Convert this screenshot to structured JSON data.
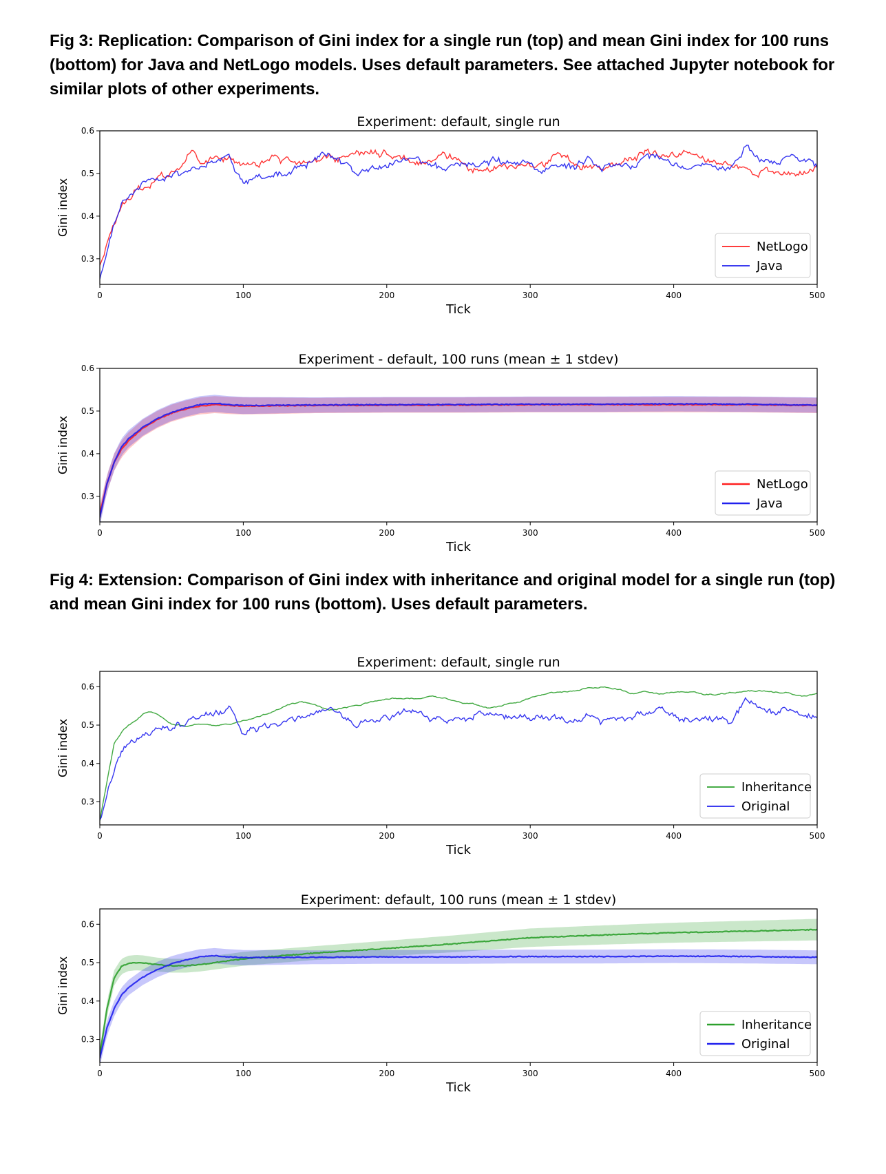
{
  "figures": {
    "fig3_caption": "Fig 3: Replication: Comparison of Gini index for a single run (top) and mean Gini index for 100 runs (bottom) for Java and NetLogo models.  Uses default parameters.  See attached Jupyter notebook for similar plots of other experiments.",
    "fig4_caption": "Fig 4: Extension: Comparison of Gini index with inheritance and original model for a single run (top) and mean Gini index for 100 runs (bottom).  Uses default parameters."
  },
  "chart_data": [
    {
      "type": "line",
      "title": "Experiment: default, single run",
      "xlabel": "Tick",
      "ylabel": "Gini index",
      "xlim": [
        0,
        500
      ],
      "ylim": [
        0.24,
        0.6
      ],
      "xticks": [
        0,
        100,
        200,
        300,
        400,
        500
      ],
      "yticks": [
        0.3,
        0.4,
        0.5,
        0.6
      ],
      "grid": false,
      "legend": "lower right",
      "series": [
        {
          "name": "NetLogo",
          "color": "#ff2020",
          "style": "noisy",
          "x": [
            0,
            5,
            10,
            15,
            20,
            30,
            40,
            50,
            60,
            65,
            70,
            80,
            90,
            100,
            110,
            120,
            130,
            140,
            150,
            160,
            170,
            180,
            190,
            200,
            210,
            220,
            230,
            240,
            250,
            260,
            270,
            280,
            290,
            300,
            310,
            320,
            330,
            340,
            350,
            360,
            370,
            380,
            390,
            400,
            410,
            420,
            430,
            440,
            450,
            460,
            470,
            480,
            490,
            500
          ],
          "y": [
            0.28,
            0.33,
            0.38,
            0.42,
            0.44,
            0.47,
            0.49,
            0.5,
            0.53,
            0.555,
            0.53,
            0.54,
            0.53,
            0.52,
            0.52,
            0.535,
            0.53,
            0.52,
            0.53,
            0.535,
            0.54,
            0.545,
            0.55,
            0.545,
            0.535,
            0.525,
            0.535,
            0.545,
            0.53,
            0.5,
            0.51,
            0.52,
            0.515,
            0.52,
            0.525,
            0.55,
            0.525,
            0.52,
            0.51,
            0.52,
            0.535,
            0.55,
            0.545,
            0.545,
            0.55,
            0.535,
            0.525,
            0.52,
            0.51,
            0.5,
            0.505,
            0.495,
            0.5,
            0.515
          ]
        },
        {
          "name": "Java",
          "color": "#2020ee",
          "style": "noisy",
          "x": [
            0,
            5,
            10,
            15,
            20,
            30,
            40,
            50,
            60,
            65,
            70,
            80,
            90,
            100,
            110,
            120,
            130,
            140,
            150,
            160,
            170,
            180,
            190,
            200,
            210,
            220,
            230,
            240,
            250,
            260,
            270,
            280,
            290,
            300,
            310,
            320,
            330,
            340,
            350,
            360,
            370,
            380,
            390,
            400,
            410,
            420,
            430,
            440,
            450,
            460,
            470,
            480,
            490,
            500
          ],
          "y": [
            0.25,
            0.31,
            0.38,
            0.43,
            0.45,
            0.47,
            0.49,
            0.495,
            0.505,
            0.51,
            0.52,
            0.53,
            0.54,
            0.48,
            0.49,
            0.5,
            0.505,
            0.52,
            0.53,
            0.545,
            0.52,
            0.5,
            0.515,
            0.52,
            0.53,
            0.54,
            0.52,
            0.515,
            0.52,
            0.52,
            0.53,
            0.53,
            0.525,
            0.52,
            0.515,
            0.52,
            0.515,
            0.53,
            0.51,
            0.52,
            0.515,
            0.53,
            0.54,
            0.52,
            0.51,
            0.52,
            0.515,
            0.51,
            0.56,
            0.54,
            0.525,
            0.535,
            0.53,
            0.52
          ]
        }
      ]
    },
    {
      "type": "line",
      "title": "Experiment - default, 100 runs (mean ± 1 stdev)",
      "xlabel": "Tick",
      "ylabel": "Gini index",
      "xlim": [
        0,
        500
      ],
      "ylim": [
        0.24,
        0.6
      ],
      "xticks": [
        0,
        100,
        200,
        300,
        400,
        500
      ],
      "yticks": [
        0.3,
        0.4,
        0.5,
        0.6
      ],
      "grid": false,
      "legend": "lower right",
      "band": "mean ± 1 stdev",
      "series": [
        {
          "name": "NetLogo",
          "color": "#ff2020",
          "style": "smooth",
          "x": [
            0,
            5,
            10,
            15,
            20,
            30,
            40,
            50,
            60,
            70,
            80,
            90,
            100,
            150,
            200,
            250,
            300,
            350,
            400,
            450,
            500
          ],
          "y": [
            0.26,
            0.33,
            0.38,
            0.41,
            0.43,
            0.46,
            0.48,
            0.495,
            0.505,
            0.512,
            0.515,
            0.513,
            0.512,
            0.513,
            0.514,
            0.514,
            0.515,
            0.515,
            0.515,
            0.515,
            0.513
          ],
          "sd": [
            0.02,
            0.02,
            0.02,
            0.02,
            0.02,
            0.02,
            0.02,
            0.02,
            0.02,
            0.02,
            0.02,
            0.02,
            0.02,
            0.018,
            0.018,
            0.018,
            0.018,
            0.018,
            0.018,
            0.018,
            0.018
          ]
        },
        {
          "name": "Java",
          "color": "#2020ee",
          "style": "smooth",
          "x": [
            0,
            5,
            10,
            15,
            20,
            30,
            40,
            50,
            60,
            70,
            80,
            90,
            100,
            150,
            200,
            250,
            300,
            350,
            400,
            450,
            500
          ],
          "y": [
            0.25,
            0.33,
            0.38,
            0.415,
            0.435,
            0.462,
            0.482,
            0.497,
            0.507,
            0.515,
            0.518,
            0.515,
            0.513,
            0.514,
            0.515,
            0.515,
            0.516,
            0.516,
            0.517,
            0.516,
            0.514
          ],
          "sd": [
            0.02,
            0.02,
            0.02,
            0.02,
            0.02,
            0.02,
            0.02,
            0.02,
            0.02,
            0.02,
            0.02,
            0.02,
            0.02,
            0.018,
            0.018,
            0.018,
            0.018,
            0.018,
            0.018,
            0.018,
            0.018
          ]
        }
      ]
    },
    {
      "type": "line",
      "title": "Experiment: default, single run",
      "xlabel": "Tick",
      "ylabel": "Gini index",
      "xlim": [
        0,
        500
      ],
      "ylim": [
        0.24,
        0.64
      ],
      "xticks": [
        0,
        100,
        200,
        300,
        400,
        500
      ],
      "yticks": [
        0.3,
        0.4,
        0.5,
        0.6
      ],
      "grid": false,
      "legend": "lower right",
      "series": [
        {
          "name": "Inheritance",
          "color": "#2ca02c",
          "style": "wavy",
          "x": [
            0,
            5,
            10,
            15,
            20,
            25,
            30,
            35,
            40,
            45,
            50,
            60,
            70,
            80,
            90,
            100,
            110,
            120,
            130,
            140,
            150,
            160,
            170,
            180,
            190,
            200,
            210,
            220,
            230,
            240,
            250,
            260,
            270,
            280,
            290,
            300,
            310,
            320,
            330,
            340,
            350,
            360,
            370,
            380,
            390,
            400,
            410,
            420,
            430,
            440,
            450,
            460,
            470,
            480,
            490,
            500
          ],
          "y": [
            0.25,
            0.35,
            0.45,
            0.48,
            0.5,
            0.51,
            0.53,
            0.535,
            0.53,
            0.52,
            0.505,
            0.5,
            0.505,
            0.5,
            0.5,
            0.51,
            0.52,
            0.535,
            0.55,
            0.56,
            0.555,
            0.54,
            0.545,
            0.55,
            0.56,
            0.57,
            0.57,
            0.57,
            0.575,
            0.57,
            0.56,
            0.555,
            0.545,
            0.55,
            0.56,
            0.57,
            0.58,
            0.585,
            0.59,
            0.595,
            0.6,
            0.595,
            0.585,
            0.585,
            0.58,
            0.585,
            0.585,
            0.58,
            0.58,
            0.585,
            0.59,
            0.59,
            0.585,
            0.585,
            0.575,
            0.58
          ]
        },
        {
          "name": "Original",
          "color": "#2020ee",
          "style": "noisy",
          "x": [
            0,
            5,
            10,
            15,
            20,
            30,
            40,
            50,
            60,
            65,
            70,
            80,
            90,
            100,
            110,
            120,
            130,
            140,
            150,
            160,
            170,
            180,
            190,
            200,
            210,
            220,
            230,
            240,
            250,
            260,
            270,
            280,
            290,
            300,
            310,
            320,
            330,
            340,
            350,
            360,
            370,
            380,
            390,
            400,
            410,
            420,
            430,
            440,
            450,
            460,
            470,
            480,
            490,
            500
          ],
          "y": [
            0.25,
            0.31,
            0.38,
            0.43,
            0.45,
            0.47,
            0.49,
            0.495,
            0.505,
            0.51,
            0.52,
            0.53,
            0.54,
            0.48,
            0.49,
            0.5,
            0.505,
            0.52,
            0.53,
            0.545,
            0.52,
            0.5,
            0.515,
            0.52,
            0.53,
            0.54,
            0.52,
            0.515,
            0.52,
            0.52,
            0.53,
            0.53,
            0.525,
            0.52,
            0.515,
            0.52,
            0.515,
            0.53,
            0.51,
            0.52,
            0.515,
            0.53,
            0.54,
            0.52,
            0.51,
            0.52,
            0.515,
            0.51,
            0.56,
            0.54,
            0.525,
            0.535,
            0.53,
            0.52
          ]
        }
      ]
    },
    {
      "type": "line",
      "title": "Experiment: default, 100 runs (mean ± 1 stdev)",
      "xlabel": "Tick",
      "ylabel": "Gini index",
      "xlim": [
        0,
        500
      ],
      "ylim": [
        0.24,
        0.64
      ],
      "xticks": [
        0,
        100,
        200,
        300,
        400,
        500
      ],
      "yticks": [
        0.3,
        0.4,
        0.5,
        0.6
      ],
      "grid": false,
      "legend": "lower right",
      "band": "mean ± 1 stdev",
      "series": [
        {
          "name": "Inheritance",
          "color": "#2ca02c",
          "style": "smooth",
          "x": [
            0,
            5,
            10,
            15,
            20,
            25,
            30,
            40,
            50,
            60,
            70,
            80,
            100,
            150,
            200,
            250,
            300,
            350,
            400,
            450,
            500
          ],
          "y": [
            0.26,
            0.38,
            0.46,
            0.49,
            0.498,
            0.5,
            0.499,
            0.495,
            0.492,
            0.492,
            0.495,
            0.5,
            0.51,
            0.525,
            0.537,
            0.55,
            0.565,
            0.572,
            0.578,
            0.582,
            0.586
          ],
          "sd": [
            0.015,
            0.02,
            0.02,
            0.02,
            0.02,
            0.02,
            0.02,
            0.018,
            0.018,
            0.018,
            0.018,
            0.018,
            0.018,
            0.018,
            0.02,
            0.022,
            0.024,
            0.025,
            0.026,
            0.027,
            0.028
          ]
        },
        {
          "name": "Original",
          "color": "#2020ee",
          "style": "smooth",
          "x": [
            0,
            5,
            10,
            15,
            20,
            30,
            40,
            50,
            60,
            70,
            80,
            90,
            100,
            150,
            200,
            250,
            300,
            350,
            400,
            450,
            500
          ],
          "y": [
            0.25,
            0.33,
            0.38,
            0.415,
            0.435,
            0.462,
            0.482,
            0.497,
            0.507,
            0.515,
            0.518,
            0.515,
            0.513,
            0.514,
            0.515,
            0.515,
            0.516,
            0.516,
            0.517,
            0.516,
            0.514
          ],
          "sd": [
            0.02,
            0.02,
            0.02,
            0.02,
            0.02,
            0.02,
            0.02,
            0.02,
            0.02,
            0.02,
            0.02,
            0.02,
            0.02,
            0.018,
            0.018,
            0.018,
            0.018,
            0.018,
            0.018,
            0.018,
            0.018
          ]
        }
      ]
    }
  ]
}
